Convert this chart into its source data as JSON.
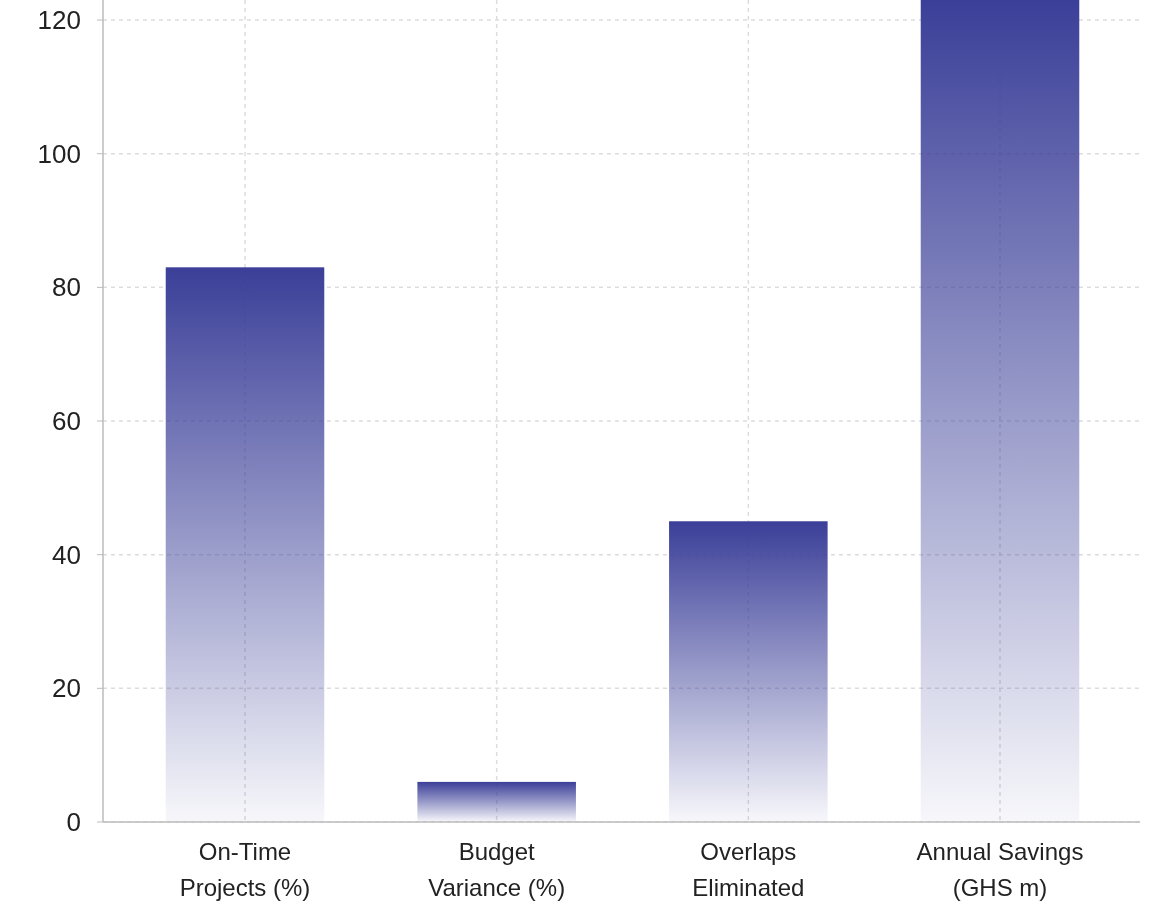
{
  "chart_data": {
    "type": "bar",
    "categories": [
      "On-Time Projects (%)",
      "Budget Variance (%)",
      "Overlaps Eliminated",
      "Annual Savings (GHS m)"
    ],
    "values": [
      83,
      6,
      45,
      123
    ],
    "color": "#3b3f98",
    "ylim": [
      0,
      123
    ],
    "yticks": [
      0,
      20,
      40,
      60,
      80,
      100,
      120
    ],
    "grid": true
  }
}
